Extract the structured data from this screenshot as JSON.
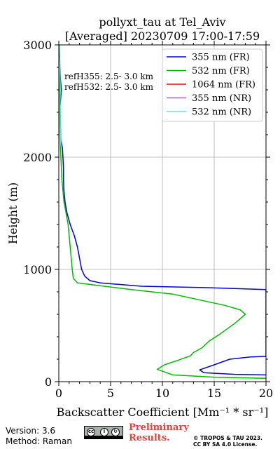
{
  "chart_data": {
    "type": "line",
    "title_line1": "pollyxt_tau at Tel_Aviv",
    "title_line2": "[Averaged] 20230709 17:00-17:59",
    "xlabel": "Backscatter Coefficient [Mm⁻¹ * sr⁻¹]",
    "ylabel": "Height (m)",
    "xlim": [
      0,
      20
    ],
    "ylim": [
      0,
      3000
    ],
    "xticks": [
      "0",
      "5",
      "10",
      "15",
      "20"
    ],
    "yticks": [
      "0",
      "1000",
      "2000",
      "3000"
    ],
    "grid": true,
    "legend_position": "top-right",
    "annotations": [
      "refH355:  2.5- 3.0 km",
      "refH532:  2.5- 3.0 km"
    ],
    "series": [
      {
        "name": "355 nm (FR)",
        "color": "#0000dd",
        "points": [
          [
            20,
            60
          ],
          [
            17,
            65
          ],
          [
            14,
            80
          ],
          [
            13.6,
            105
          ],
          [
            15,
            150
          ],
          [
            16.5,
            200
          ],
          [
            18.5,
            220
          ],
          [
            20,
            225
          ],
          [
            20,
            820
          ],
          [
            14,
            838
          ],
          [
            8,
            850
          ],
          [
            4,
            880
          ],
          [
            3,
            900
          ],
          [
            2.5,
            940
          ],
          [
            2.2,
            1000
          ],
          [
            2,
            1100
          ],
          [
            1.8,
            1200
          ],
          [
            1.5,
            1300
          ],
          [
            1.1,
            1400
          ],
          [
            0.8,
            1500
          ],
          [
            0.6,
            1600
          ],
          [
            0.5,
            1700
          ],
          [
            0.45,
            1800
          ],
          [
            0.45,
            1900
          ],
          [
            0.4,
            2000
          ],
          [
            0.35,
            2080
          ],
          [
            0.2,
            2150
          ],
          [
            0.15,
            2300
          ],
          [
            0.12,
            2450
          ],
          [
            0.2,
            2550
          ],
          [
            0.25,
            2600
          ],
          [
            0.15,
            2700
          ],
          [
            0.1,
            2800
          ],
          [
            0.08,
            2900
          ],
          [
            0.05,
            3000
          ]
        ]
      },
      {
        "name": "532 nm (FR)",
        "color": "#00bb00",
        "points": [
          [
            20,
            30
          ],
          [
            15,
            40
          ],
          [
            11,
            60
          ],
          [
            9.5,
            110
          ],
          [
            10.2,
            150
          ],
          [
            11.5,
            190
          ],
          [
            12.7,
            230
          ],
          [
            13,
            260
          ],
          [
            13.8,
            300
          ],
          [
            14.5,
            360
          ],
          [
            15.5,
            420
          ],
          [
            17,
            520
          ],
          [
            18,
            600
          ],
          [
            17.5,
            640
          ],
          [
            16,
            680
          ],
          [
            14,
            720
          ],
          [
            11,
            780
          ],
          [
            7,
            820
          ],
          [
            3.5,
            860
          ],
          [
            1.8,
            880
          ],
          [
            1.4,
            920
          ],
          [
            1.3,
            1000
          ],
          [
            1.1,
            1200
          ],
          [
            0.9,
            1400
          ],
          [
            0.7,
            1500
          ],
          [
            0.5,
            1600
          ],
          [
            0.4,
            1700
          ],
          [
            0.3,
            1800
          ],
          [
            0.25,
            1900
          ],
          [
            0.2,
            2000
          ],
          [
            0.15,
            2100
          ],
          [
            0.1,
            2300
          ],
          [
            0.08,
            2500
          ],
          [
            0.06,
            2700
          ],
          [
            0.04,
            2900
          ],
          [
            0.03,
            3000
          ]
        ]
      },
      {
        "name": "1064 nm (FR)",
        "color": "#dd1111",
        "points": []
      },
      {
        "name": "355 nm (NR)",
        "color": "#aa55ee",
        "points": []
      },
      {
        "name": "532 nm (NR)",
        "color": "#55eecc",
        "points": [
          [
            0.2,
            2100
          ],
          [
            0.15,
            2300
          ],
          [
            0.12,
            2500
          ],
          [
            0.15,
            2600
          ],
          [
            0.1,
            2750
          ],
          [
            0.05,
            2900
          ],
          [
            0.02,
            3000
          ]
        ]
      }
    ]
  },
  "footer": {
    "version": "Version: 3.6",
    "method": "Method: Raman",
    "preliminary_line1": "Preliminary",
    "preliminary_line2": "Results.",
    "copyright_line1": "© TROPOS & TAU 2023.",
    "copyright_line2": "CC BY SA 4.0 License."
  }
}
